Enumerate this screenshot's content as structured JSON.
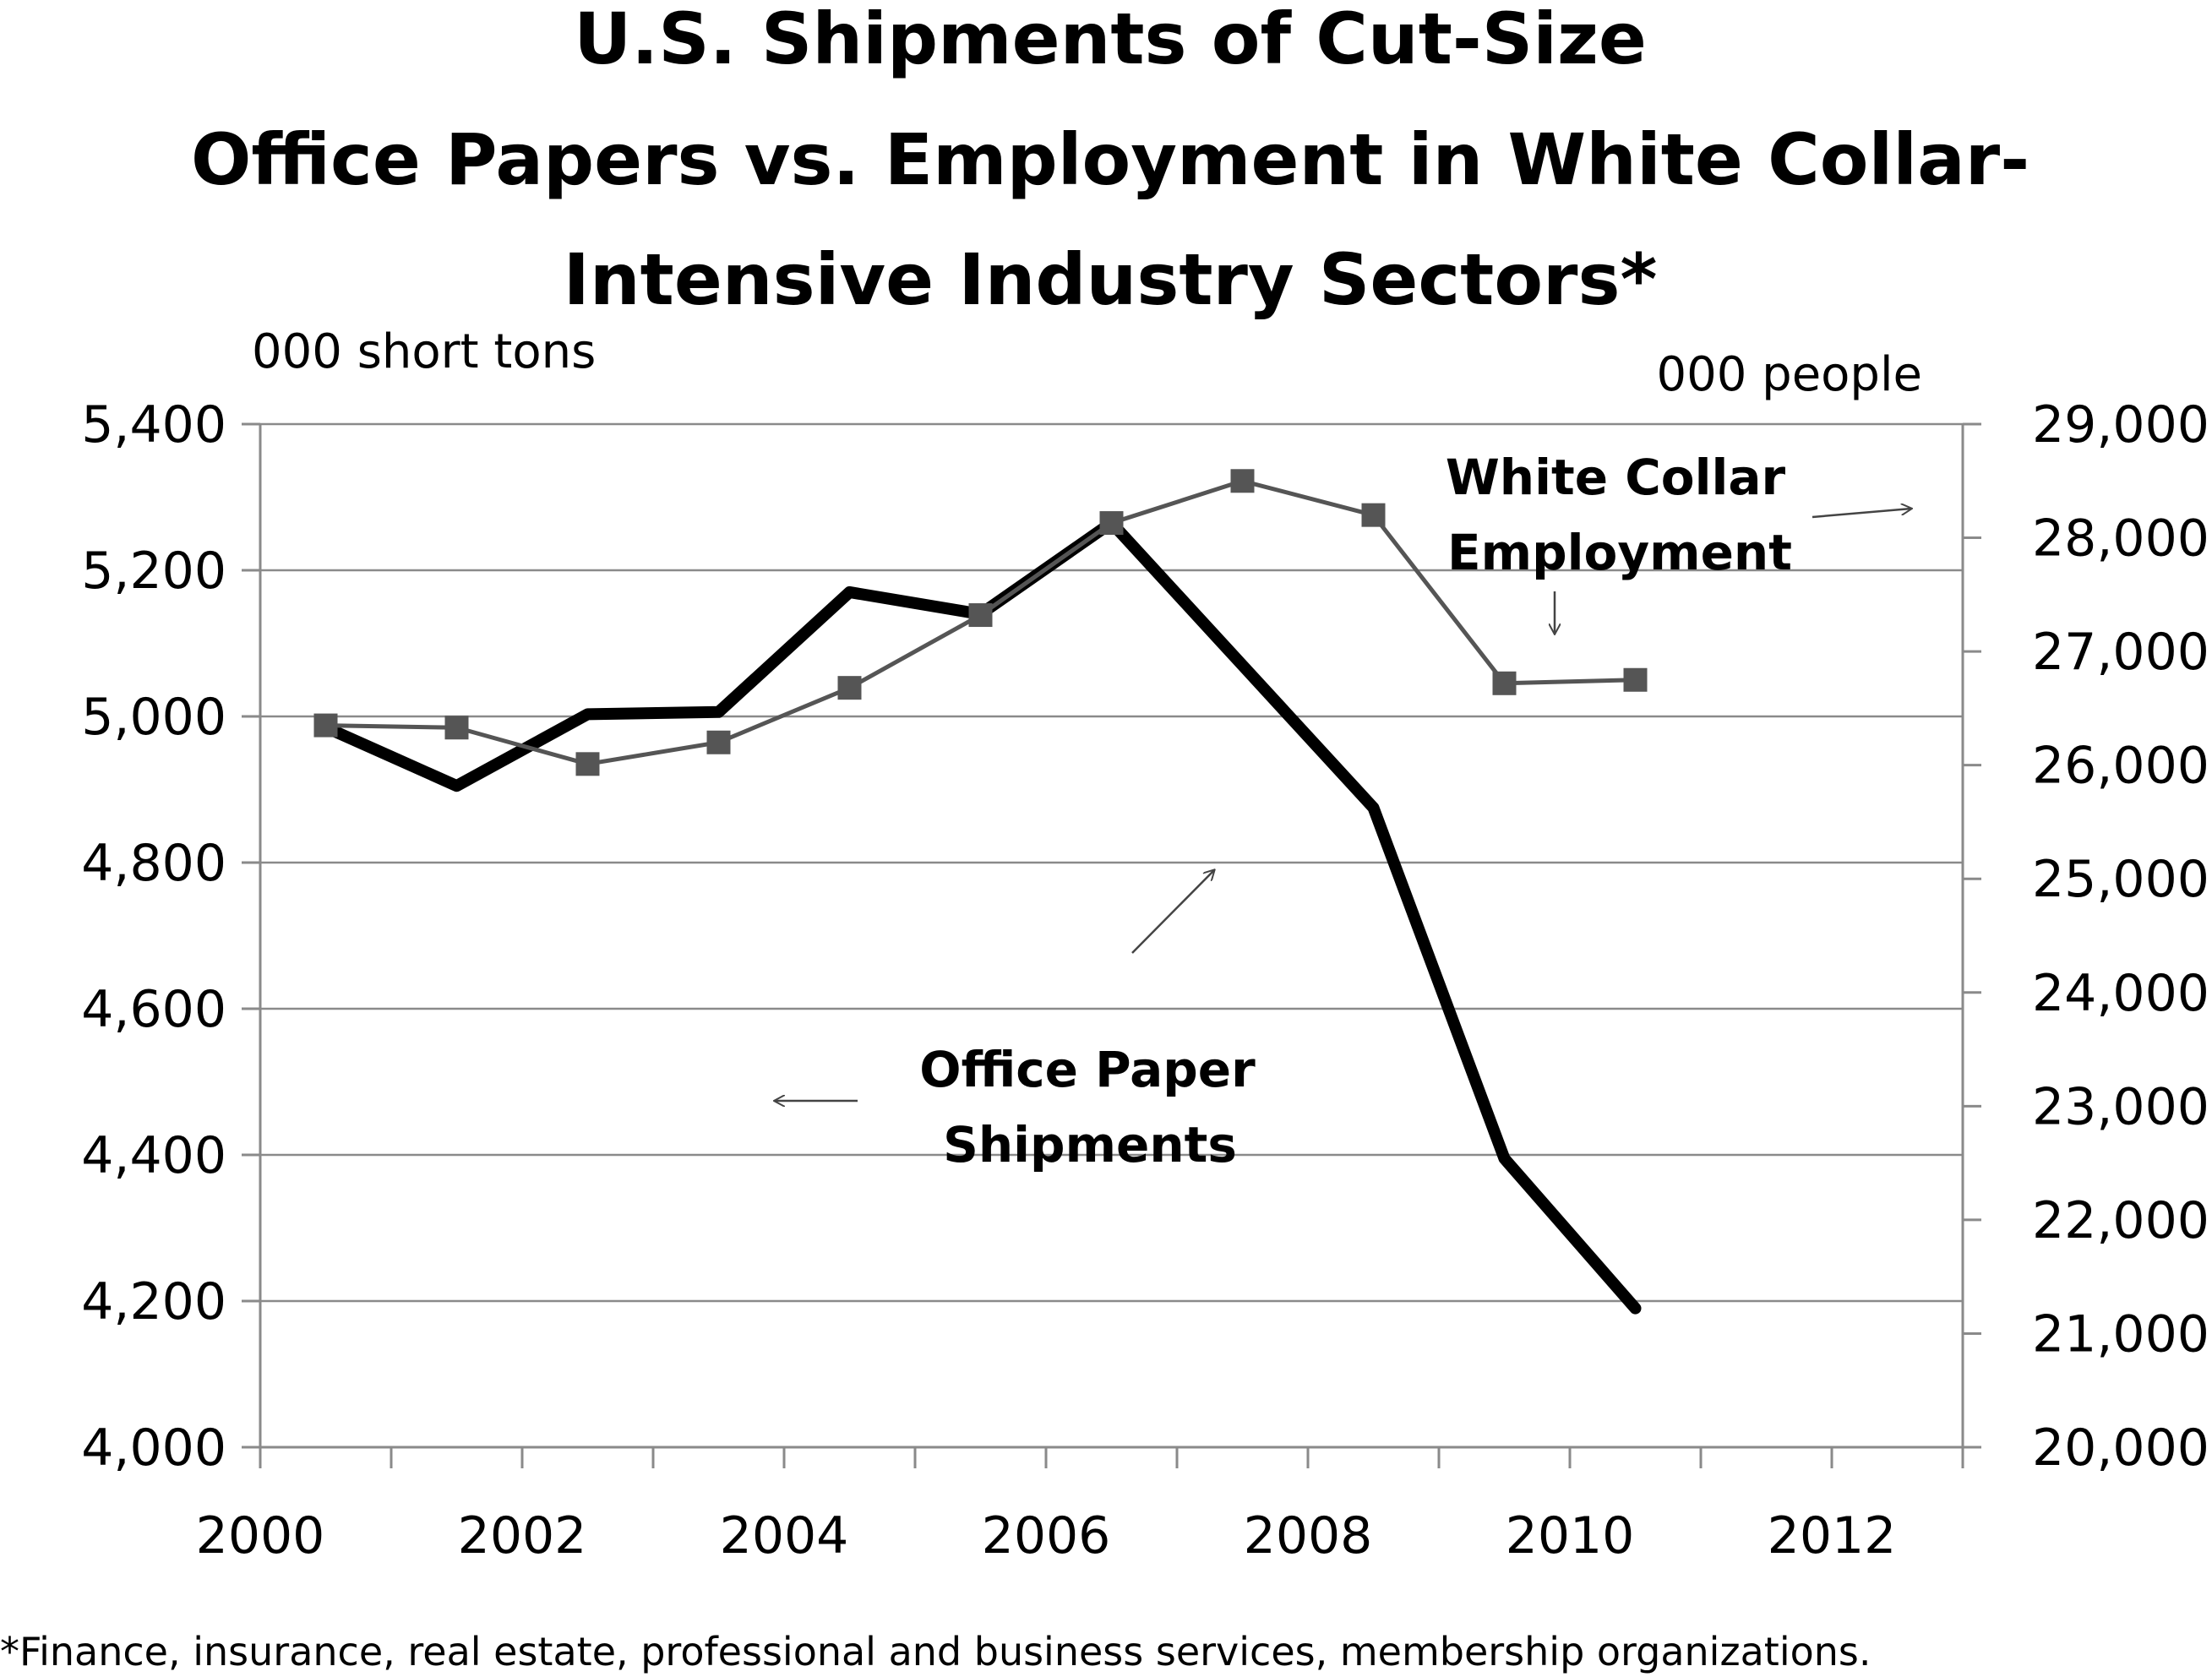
{
  "chart_data": {
    "type": "line",
    "title": [
      "U.S. Shipments of  Cut-Size",
      "Office Papers vs. Employment in White Collar-",
      "Intensive Industry Sectors*"
    ],
    "y_left_label": "000 short tons",
    "y_right_label": "000 people",
    "x_ticks": [
      "2000",
      "2002",
      "2004",
      "2006",
      "2008",
      "2010",
      "2012"
    ],
    "y_left_ticks": [
      "5,400",
      "5,200",
      "5,000",
      "4,800",
      "4,600",
      "4,400",
      "4,200",
      "4,000"
    ],
    "y_right_ticks": [
      "29,000",
      "28,000",
      "27,000",
      "26,000",
      "25,000",
      "24,000",
      "23,000",
      "22,000",
      "21,000",
      "20,000"
    ],
    "xlim": [
      2000,
      2013
    ],
    "ylim_left": [
      4000,
      5400
    ],
    "ylim_right": [
      20000,
      29000
    ],
    "grid": true,
    "series": [
      {
        "name": "Office Paper Shipments",
        "axis": "left",
        "color": "#000000",
        "x": [
          2000,
          2001,
          2002,
          2003,
          2004,
          2005,
          2006,
          2007,
          2008,
          2009,
          2010
        ],
        "values": [
          4985,
          4905,
          5003,
          5006,
          5170,
          5140,
          5265,
          5070,
          4875,
          4395,
          4190
        ]
      },
      {
        "name": "White Collar Employment",
        "axis": "right",
        "color": "#555555",
        "marker": "square",
        "x": [
          2000,
          2001,
          2002,
          2003,
          2004,
          2005,
          2006,
          2007,
          2008,
          2009,
          2010
        ],
        "values": [
          26350,
          26330,
          26010,
          26200,
          26680,
          27320,
          28130,
          28500,
          28200,
          26720,
          26750
        ]
      }
    ],
    "annotations": {
      "employment_label": [
        "White Collar",
        "Employment"
      ],
      "shipments_label": [
        "Office Paper",
        "Shipments"
      ]
    },
    "footnote": "*Finance, insurance, real estate, professional and business services, membership organizations."
  }
}
